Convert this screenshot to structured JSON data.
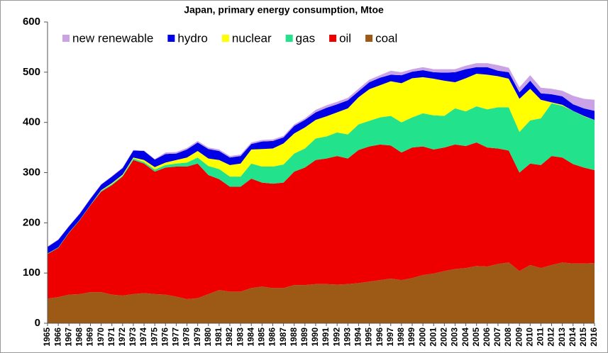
{
  "chart_data": {
    "type": "stacked_area",
    "title": "Japan, primary energy consumption, Mtoe",
    "categories": [
      "1965",
      "1966",
      "1967",
      "1968",
      "1969",
      "1970",
      "1971",
      "1972",
      "1973",
      "1974",
      "1975",
      "1976",
      "1977",
      "1978",
      "1979",
      "1980",
      "1981",
      "1982",
      "1983",
      "1984",
      "1985",
      "1986",
      "1987",
      "1988",
      "1989",
      "1990",
      "1991",
      "1992",
      "1993",
      "1994",
      "1995",
      "1996",
      "1997",
      "1998",
      "1999",
      "2000",
      "2001",
      "2002",
      "2003",
      "2004",
      "2005",
      "2006",
      "2007",
      "2008",
      "2009",
      "2010",
      "2011",
      "2012",
      "2013",
      "2014",
      "2015",
      "2016"
    ],
    "series": [
      {
        "name": "new renewable",
        "color": "#c9a3e6",
        "values": [
          1,
          1,
          1,
          1,
          1,
          1,
          1,
          1,
          1,
          1,
          1,
          3,
          3,
          3,
          3,
          3,
          3,
          3,
          3,
          3,
          3,
          3,
          3,
          3,
          3,
          5,
          5,
          5,
          5,
          5,
          5,
          5,
          8,
          6,
          5,
          6,
          6,
          7,
          6,
          7,
          8,
          8,
          11,
          9,
          10,
          11,
          11,
          11,
          11,
          17,
          19,
          22
        ]
      },
      {
        "name": "hydro",
        "color": "#0000e6",
        "values": [
          13,
          15,
          12,
          12,
          12,
          11,
          13,
          13,
          14,
          18,
          15,
          17,
          13,
          16,
          17,
          19,
          18,
          15,
          15,
          11,
          15,
          15,
          12,
          15,
          15,
          15,
          17,
          16,
          16,
          12,
          14,
          15,
          13,
          16,
          13,
          14,
          13,
          16,
          20,
          18,
          13,
          15,
          11,
          13,
          13,
          16,
          13,
          16,
          17,
          13,
          15,
          18
        ]
      },
      {
        "name": "nuclear",
        "color": "#ffff00",
        "values": [
          0,
          0,
          0,
          0,
          0,
          1,
          2,
          2,
          2,
          4,
          5,
          5,
          7,
          10,
          13,
          15,
          18,
          23,
          26,
          28,
          35,
          36,
          42,
          40,
          42,
          37,
          40,
          40,
          52,
          54,
          63,
          64,
          69,
          78,
          78,
          72,
          73,
          70,
          52,
          66,
          65,
          69,
          62,
          57,
          66,
          63,
          37,
          2,
          2,
          0,
          1,
          0
        ]
      },
      {
        "name": "gas",
        "color": "#22e28c",
        "values": [
          1,
          1,
          1,
          1,
          1,
          2,
          2,
          2,
          3,
          3,
          4,
          5,
          6,
          8,
          12,
          18,
          20,
          20,
          20,
          30,
          32,
          34,
          36,
          36,
          38,
          43,
          44,
          47,
          48,
          51,
          51,
          54,
          59,
          60,
          60,
          66,
          68,
          63,
          72,
          69,
          72,
          76,
          82,
          86,
          81,
          86,
          93,
          105,
          103,
          106,
          102,
          100
        ]
      },
      {
        "name": "oil",
        "color": "#ee0000",
        "values": [
          89,
          98,
          123,
          147,
          173,
          200,
          218,
          237,
          267,
          258,
          244,
          253,
          259,
          264,
          268,
          237,
          221,
          209,
          209,
          218,
          207,
          208,
          210,
          226,
          234,
          247,
          250,
          256,
          250,
          265,
          269,
          270,
          265,
          254,
          260,
          256,
          247,
          246,
          248,
          243,
          246,
          237,
          230,
          223,
          196,
          202,
          205,
          217,
          209,
          198,
          191,
          185
        ]
      },
      {
        "name": "coal",
        "color": "#9c5a16",
        "values": [
          49,
          52,
          57,
          58,
          62,
          62,
          57,
          55,
          58,
          60,
          58,
          57,
          53,
          48,
          50,
          58,
          66,
          63,
          63,
          70,
          73,
          70,
          70,
          76,
          76,
          78,
          78,
          77,
          78,
          80,
          83,
          86,
          89,
          86,
          90,
          96,
          99,
          104,
          108,
          110,
          114,
          113,
          118,
          121,
          104,
          116,
          110,
          116,
          121,
          119,
          119,
          120
        ]
      }
    ],
    "ylim": [
      0,
      600
    ],
    "yticks": [
      0,
      100,
      200,
      300,
      400,
      500,
      600
    ],
    "grid": false,
    "legend": "top-left"
  }
}
